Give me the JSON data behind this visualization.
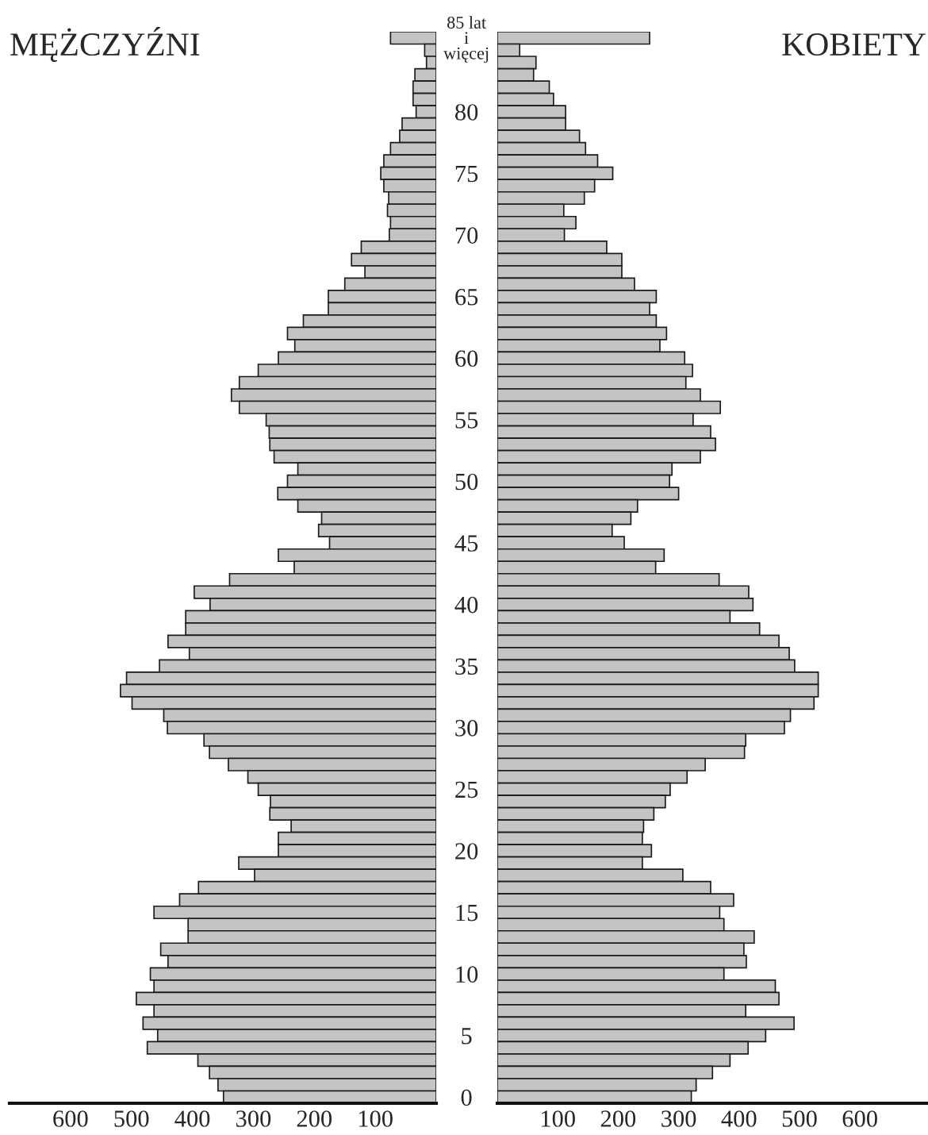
{
  "chart_data": [
    {
      "type": "bar",
      "orientation": "horizontal",
      "title": "MĘŻCZYŹNI",
      "color": "#c4c4c4",
      "xlim": [
        700,
        0
      ],
      "xticks": [
        100,
        200,
        300,
        400,
        500,
        600
      ],
      "tick_labels": "x",
      "grid": false,
      "categories": [
        null,
        null,
        null,
        null,
        null,
        null,
        null,
        null,
        null,
        null,
        null,
        null,
        null,
        null,
        null,
        null,
        null,
        null,
        null,
        null,
        null,
        null,
        null,
        null,
        null,
        null,
        null,
        null,
        null,
        null,
        null,
        null,
        null,
        null,
        null,
        null,
        null,
        null,
        null,
        null,
        null,
        null,
        null,
        null,
        null,
        null,
        null,
        null,
        null,
        null,
        null,
        null,
        null,
        null,
        null,
        null,
        null,
        null,
        null,
        null,
        null,
        null,
        null,
        null,
        null,
        null,
        null,
        null,
        null,
        null,
        null,
        null,
        null,
        null,
        null,
        null,
        null,
        null,
        null,
        null,
        null,
        null,
        null,
        null,
        null,
        null,
        null
      ],
      "values": [
        75,
        19,
        16,
        35,
        38,
        38,
        33,
        56,
        60,
        75,
        86,
        91,
        86,
        78,
        80,
        75,
        77,
        123,
        139,
        117,
        150,
        177,
        177,
        218,
        244,
        232,
        259,
        292,
        323,
        336,
        323,
        279,
        274,
        273,
        266,
        227,
        244,
        260,
        227,
        188,
        193,
        175,
        259,
        233,
        339,
        397,
        371,
        411,
        411,
        440,
        405,
        454,
        508,
        518,
        499,
        447,
        441,
        381,
        372,
        341,
        309,
        292,
        272,
        273,
        238,
        259,
        259,
        324,
        298,
        390,
        421,
        463,
        407,
        407,
        452,
        440,
        469,
        463,
        492,
        463,
        481,
        457,
        474,
        391,
        372,
        358,
        349
      ]
    },
    {
      "type": "bar",
      "orientation": "horizontal",
      "title": "KOBIETY",
      "color": "#c4c4c4",
      "xlim": [
        0,
        710
      ],
      "xticks": [
        100,
        200,
        300,
        400,
        500,
        600
      ],
      "grid": false,
      "categories": [
        "85 lat\ni\nwięcej",
        null,
        null,
        null,
        null,
        null,
        "80",
        null,
        null,
        null,
        null,
        "75",
        null,
        null,
        null,
        null,
        "70",
        null,
        null,
        null,
        null,
        "65",
        null,
        null,
        null,
        null,
        "60",
        null,
        null,
        null,
        null,
        "55",
        null,
        null,
        null,
        null,
        "50",
        null,
        null,
        null,
        null,
        "45",
        null,
        null,
        null,
        null,
        "40",
        null,
        null,
        null,
        null,
        "35",
        null,
        null,
        null,
        null,
        "30",
        null,
        null,
        null,
        null,
        "25",
        null,
        null,
        null,
        null,
        "20",
        null,
        null,
        null,
        null,
        "15",
        null,
        null,
        null,
        null,
        "10",
        null,
        null,
        null,
        null,
        "5",
        null,
        null,
        null,
        null,
        "0"
      ],
      "values": [
        252,
        37,
        64,
        60,
        86,
        93,
        113,
        113,
        136,
        146,
        166,
        191,
        161,
        144,
        110,
        130,
        111,
        181,
        206,
        206,
        227,
        263,
        252,
        263,
        280,
        269,
        310,
        323,
        312,
        336,
        369,
        324,
        353,
        361,
        336,
        289,
        285,
        300,
        232,
        221,
        190,
        210,
        276,
        262,
        367,
        416,
        423,
        385,
        434,
        466,
        483,
        492,
        531,
        531,
        524,
        485,
        475,
        411,
        409,
        344,
        314,
        286,
        278,
        259,
        242,
        240,
        255,
        240,
        307,
        353,
        391,
        368,
        375,
        425,
        408,
        412,
        375,
        460,
        466,
        411,
        491,
        444,
        415,
        385,
        356,
        329,
        321
      ]
    }
  ]
}
